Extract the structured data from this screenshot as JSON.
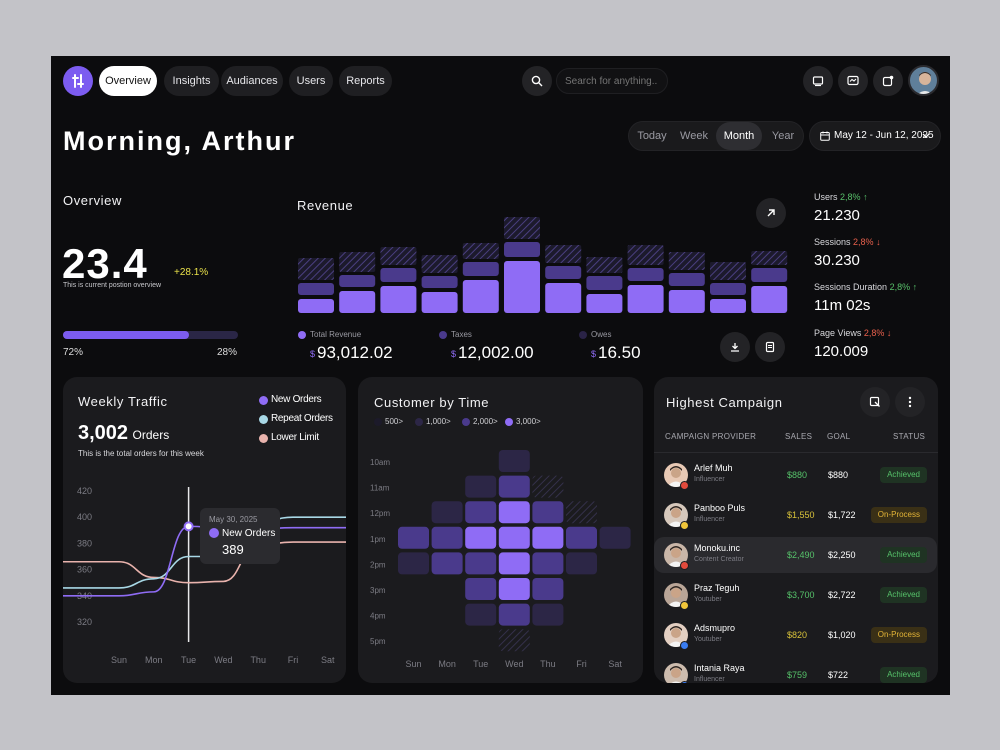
{
  "nav": {
    "tabs": [
      {
        "label": "Overview",
        "active": true
      },
      {
        "label": "Insights"
      },
      {
        "label": "Audiances"
      },
      {
        "label": "Users"
      },
      {
        "label": "Reports"
      }
    ],
    "search_placeholder": "Search for anything.."
  },
  "greeting": "Morning, Arthur",
  "range_tabs": [
    "Today",
    "Week",
    "Month",
    "Year"
  ],
  "date_range": "May 12 - Jun 12, 2025",
  "overview": {
    "title": "Overview",
    "value": "23.4",
    "change": "+28.1%",
    "caption": "This is current postion overview",
    "progress": 0.72,
    "left_pct": "72%",
    "right_pct": "28%"
  },
  "revenue": {
    "title": "Revenue",
    "legend": [
      {
        "label": "Total Revenue",
        "currency": "$",
        "value": "93,012.02",
        "color": "#8f6cf5"
      },
      {
        "label": "Taxes",
        "currency": "$",
        "value": "12,002.00",
        "color": "#4a3a8c"
      },
      {
        "label": "Owes",
        "currency": "$",
        "value": "16.50",
        "color": "#2a2346"
      }
    ]
  },
  "stats": [
    {
      "label": "Users",
      "change": "2,8%",
      "dir": "up",
      "arrow": "↑",
      "value": "21.230"
    },
    {
      "label": "Sessions",
      "change": "2,8%",
      "dir": "down",
      "arrow": "↓",
      "value": "30.230"
    },
    {
      "label": "Sessions Duration",
      "change": "2,8%",
      "dir": "up",
      "arrow": "↑",
      "value": "11m 02s"
    },
    {
      "label": "Page Views",
      "change": "2,8%",
      "dir": "down",
      "arrow": "↓",
      "value": "120.009"
    }
  ],
  "weekly": {
    "title": "Weekly Traffic",
    "total": "3,002",
    "total_unit": "Orders",
    "caption": "This is the total orders for this week",
    "legend": [
      {
        "label": "New Orders",
        "color": "#8f6cf5"
      },
      {
        "label": "Repeat Orders",
        "color": "#a8d8e6"
      },
      {
        "label": "Lower Limit",
        "color": "#e9b3ad"
      }
    ],
    "tooltip": {
      "date": "May 30, 2025",
      "label": "New Orders",
      "value": "389"
    }
  },
  "customer": {
    "title": "Customer by Time",
    "legend": [
      {
        "label": "500>",
        "color": "#1c1a2a"
      },
      {
        "label": "1,000>",
        "color": "#2c2646"
      },
      {
        "label": "2,000>",
        "color": "#4a3a8c"
      },
      {
        "label": "3,000>",
        "color": "#8f6cf5"
      }
    ]
  },
  "campaign": {
    "title": "Highest Campaign",
    "headers": [
      "CAMPAIGN PROVIDER",
      "SALES",
      "GOAL",
      "STATUS"
    ],
    "rows": [
      {
        "name": "Arlef Muh",
        "role": "Influencer",
        "sales": "$880",
        "goal": "$880",
        "status": "Achieved",
        "sales_color": "#56c26a"
      },
      {
        "name": "Panboo Puls",
        "role": "Influencer",
        "sales": "$1,550",
        "goal": "$1,722",
        "status": "On-Process",
        "sales_color": "#d8c23a"
      },
      {
        "name": "Monoku.inc",
        "role": "Content Creator",
        "sales": "$2,490",
        "goal": "$2,250",
        "status": "Achieved",
        "sales_color": "#56c26a"
      },
      {
        "name": "Praz Teguh",
        "role": "Youtuber",
        "sales": "$3,700",
        "goal": "$2,722",
        "status": "Achieved",
        "sales_color": "#56c26a"
      },
      {
        "name": "Adsmupro",
        "role": "Youtuber",
        "sales": "$820",
        "goal": "$1,020",
        "status": "On-Process",
        "sales_color": "#d8c23a"
      },
      {
        "name": "Intania Raya",
        "role": "Influencer",
        "sales": "$759",
        "goal": "$722",
        "status": "Achieved",
        "sales_color": "#56c26a"
      }
    ]
  },
  "chart_data": [
    {
      "type": "bar",
      "title": "Revenue",
      "series": [
        {
          "name": "Total Revenue",
          "values": [
            14,
            22,
            27,
            21,
            33,
            52,
            30,
            19,
            28,
            23,
            14,
            27
          ]
        },
        {
          "name": "Taxes",
          "values": [
            12,
            12,
            14,
            12,
            14,
            15,
            13,
            14,
            13,
            13,
            12,
            14
          ]
        },
        {
          "name": "Owes",
          "values": [
            22,
            20,
            18,
            18,
            16,
            22,
            18,
            16,
            20,
            18,
            18,
            14
          ]
        }
      ]
    },
    {
      "type": "line",
      "title": "Weekly Traffic",
      "x": [
        "Sun",
        "Mon",
        "Tue",
        "Wed",
        "Thu",
        "Fri",
        "Sat"
      ],
      "ylim": [
        320,
        420
      ],
      "yticks": [
        420,
        400,
        380,
        360,
        340,
        320
      ],
      "series": [
        {
          "name": "New Orders",
          "values": [
            340,
            343,
            393,
            392,
            391,
            392,
            392
          ]
        },
        {
          "name": "Repeat Orders",
          "values": [
            346,
            353,
            370,
            370,
            396,
            400,
            400
          ]
        },
        {
          "name": "Lower Limit",
          "values": [
            366,
            354,
            350,
            351,
            379,
            381,
            381
          ]
        }
      ]
    },
    {
      "type": "heatmap",
      "title": "Customer by Time",
      "x": [
        "Sun",
        "Mon",
        "Tue",
        "Wed",
        "Thu",
        "Fri",
        "Sat"
      ],
      "y": [
        "10am",
        "11am",
        "12pm",
        "1pm",
        "2pm",
        "3pm",
        "4pm",
        "5pm"
      ],
      "levels": [
        "500>",
        "1,000>",
        "2,000>",
        "3,000>"
      ],
      "cells": [
        [
          0,
          0,
          0,
          1,
          0,
          0,
          0
        ],
        [
          0,
          0,
          1,
          2,
          0,
          0,
          0
        ],
        [
          0,
          1,
          2,
          3,
          2,
          0,
          0
        ],
        [
          2,
          2,
          3,
          3,
          3,
          2,
          1
        ],
        [
          1,
          2,
          2,
          3,
          2,
          1,
          0
        ],
        [
          0,
          0,
          2,
          3,
          2,
          0,
          0
        ],
        [
          0,
          0,
          1,
          2,
          1,
          0,
          0
        ],
        [
          0,
          0,
          0,
          0,
          0,
          0,
          0
        ]
      ]
    }
  ]
}
